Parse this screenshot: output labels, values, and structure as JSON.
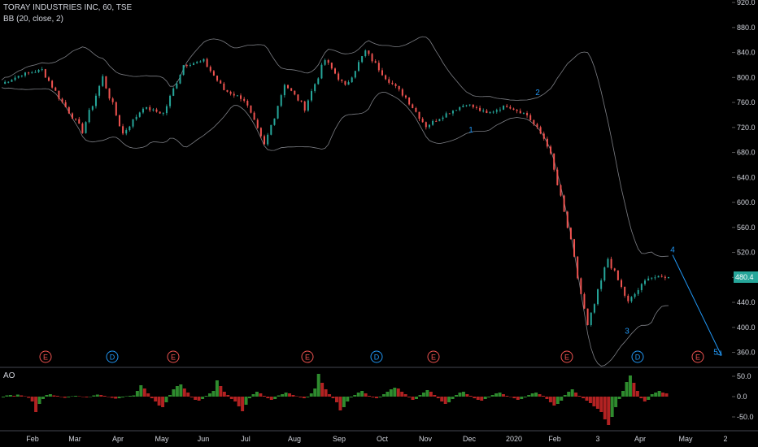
{
  "header": {
    "symbol_line": "TORAY INDUSTRIES INC, 60, TSE",
    "indicator_line": "BB (20, close, 2)"
  },
  "colors": {
    "background": "#000000",
    "up": "#26a69a",
    "down": "#ef5350",
    "band": "#b2b5be",
    "axis_text": "#d1d4dc",
    "wave": "#2196f3",
    "ao_up": "#2e8b2e",
    "ao_down": "#b22222",
    "price_tag": "#26a69a",
    "earnings": "#ef5350",
    "dividend": "#2196f3"
  },
  "chart_data": [
    {
      "type": "line",
      "title": "TORAY INDUSTRIES INC, 60, TSE",
      "xlabel": "",
      "ylabel": "",
      "x_ticks": [
        "Feb",
        "Mar",
        "Apr",
        "May",
        "Jun",
        "Jul",
        "Aug",
        "Sep",
        "Oct",
        "Nov",
        "Dec",
        "2020",
        "Feb",
        "3",
        "Apr",
        "May",
        "2"
      ],
      "y_ticks": [
        360,
        400,
        440,
        480,
        520,
        560,
        600,
        640,
        680,
        720,
        760,
        800,
        840,
        880,
        920
      ],
      "ylim": [
        336,
        924
      ],
      "grid": false,
      "last_price_label": "480.4",
      "last_price": 480.4,
      "series": [
        {
          "name": "",
          "x": [
            "Jan",
            "Feb",
            "Feb",
            "Mar",
            "Apr",
            "Apr",
            "May",
            "May",
            "Jun",
            "Jun",
            "Jul",
            "Jul",
            "Aug",
            "Aug",
            "Aug",
            "Sep",
            "Oct",
            "Oct",
            "Oct",
            "Nov",
            "Nov",
            "Dec",
            "Dec",
            "Dec",
            "2020",
            "Jan",
            "Feb",
            "Feb",
            "Mar",
            "Mar",
            "Mar",
            "Apr",
            "Apr",
            "Apr"
          ],
          "values": [
            790,
            805,
            812,
            760,
            715,
            800,
            710,
            752,
            742,
            820,
            826,
            780,
            765,
            690,
            790,
            752,
            828,
            785,
            842,
            800,
            768,
            722,
            742,
            758,
            742,
            755,
            740,
            695,
            560,
            400,
            510,
            440,
            480,
            480.4
          ]
        }
      ],
      "bands": {
        "period": 20,
        "stddev": 2,
        "label": "BB (20, close, 2)"
      },
      "wave_labels": [
        {
          "label": "1",
          "x": "Dec",
          "y": 712
        },
        {
          "label": "2",
          "x": "2020",
          "y": 772
        },
        {
          "label": "3",
          "x": "Mar",
          "y": 390
        },
        {
          "label": "4",
          "x": "Apr",
          "y": 520
        },
        {
          "label": "5",
          "x": "May",
          "y": 356
        }
      ],
      "wave_arrow": {
        "from": {
          "x": "Apr",
          "y": 516
        },
        "to": {
          "x": "May",
          "y": 355
        }
      },
      "events": [
        {
          "label": "E",
          "kind": "earnings",
          "x": "Feb"
        },
        {
          "label": "D",
          "kind": "dividend",
          "x": "Mar"
        },
        {
          "label": "E",
          "kind": "earnings",
          "x": "May"
        },
        {
          "label": "E",
          "kind": "earnings",
          "x": "Aug"
        },
        {
          "label": "D",
          "kind": "dividend",
          "x": "Sep"
        },
        {
          "label": "E",
          "kind": "earnings",
          "x": "Nov"
        },
        {
          "label": "E",
          "kind": "earnings",
          "x": "Feb"
        },
        {
          "label": "D",
          "kind": "dividend",
          "x": "Mar"
        },
        {
          "label": "E",
          "kind": "earnings",
          "x": "May"
        }
      ]
    },
    {
      "type": "bar",
      "title": "AO",
      "xlabel": "",
      "ylabel": "",
      "y_ticks": [
        "50.0",
        "0.0",
        "-50.0"
      ],
      "ylim": [
        -70,
        70
      ],
      "values": [
        -2,
        3,
        4,
        2,
        5,
        3,
        1,
        -3,
        -12,
        -38,
        -18,
        -6,
        4,
        6,
        3,
        2,
        -1,
        -3,
        -2,
        1,
        2,
        1,
        -1,
        -2,
        -1,
        3,
        5,
        4,
        2,
        -1,
        -3,
        -5,
        -4,
        -2,
        1,
        2,
        3,
        14,
        28,
        20,
        8,
        -4,
        -12,
        -22,
        -26,
        -14,
        4,
        18,
        26,
        30,
        20,
        10,
        -2,
        -8,
        -10,
        -6,
        2,
        8,
        14,
        40,
        26,
        12,
        4,
        -6,
        -12,
        -24,
        -36,
        -20,
        -4,
        6,
        12,
        8,
        2,
        -4,
        -8,
        -6,
        3,
        6,
        10,
        8,
        4,
        1,
        -2,
        -4,
        -2,
        8,
        20,
        56,
        34,
        18,
        6,
        -4,
        -14,
        -34,
        -26,
        -12,
        -2,
        4,
        10,
        14,
        8,
        2,
        -2,
        -4,
        -2,
        6,
        12,
        18,
        22,
        20,
        12,
        6,
        -2,
        -8,
        -6,
        4,
        10,
        16,
        12,
        4,
        -4,
        -12,
        -18,
        -14,
        -6,
        4,
        10,
        12,
        6,
        2,
        -4,
        -8,
        -10,
        -6,
        -2,
        4,
        8,
        10,
        6,
        2,
        0,
        -4,
        -8,
        -6,
        -2,
        4,
        8,
        10,
        6,
        2,
        -6,
        -14,
        -22,
        -18,
        -10,
        4,
        12,
        18,
        10,
        2,
        -4,
        -10,
        -16,
        -24,
        -30,
        -38,
        -56,
        -70,
        -50,
        -26,
        -6,
        14,
        36,
        52,
        34,
        14,
        -4,
        -12,
        -8,
        6,
        10,
        14,
        10,
        8
      ]
    }
  ],
  "ao_panel": {
    "label": "AO"
  }
}
